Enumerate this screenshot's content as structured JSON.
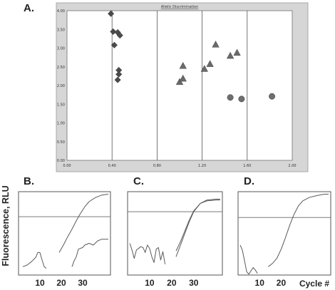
{
  "panels": {
    "a": "A.",
    "b": "B.",
    "c": "C.",
    "d": "D."
  },
  "bottom_ylabel": "Fluorescence, RLU",
  "bottom_xlabel": "Cycle #",
  "colors": {
    "frame_bg": "#d6d6d6",
    "plot_bg": "#ffffff",
    "marker": "#4a4a4a",
    "curve": "#5a5a5a",
    "threshold": "#7a7a7a"
  },
  "chart_data": [
    {
      "type": "scatter",
      "title": "Allelic Discrimination",
      "xlim": [
        0,
        2.0
      ],
      "ylim": [
        0,
        4.0
      ],
      "xticks": [
        "0.00",
        "0.40",
        "0.80",
        "1.20",
        "1.60",
        "2.00"
      ],
      "yticks": [
        "0.00",
        "0.50",
        "1.00",
        "1.50",
        "2.00",
        "2.50",
        "3.00",
        "3.50",
        "4.00"
      ],
      "grid": "vertical",
      "series": [
        {
          "marker": "diamond",
          "points": [
            [
              0.39,
              3.92
            ],
            [
              0.41,
              3.44
            ],
            [
              0.45,
              3.42
            ],
            [
              0.47,
              3.34
            ],
            [
              0.42,
              3.08
            ],
            [
              0.46,
              2.41
            ],
            [
              0.46,
              2.3
            ],
            [
              0.45,
              2.15
            ]
          ]
        },
        {
          "marker": "triangle",
          "points": [
            [
              1.0,
              2.1
            ],
            [
              1.03,
              2.19
            ],
            [
              1.03,
              2.53
            ],
            [
              1.22,
              2.45
            ],
            [
              1.27,
              2.58
            ],
            [
              1.32,
              3.1
            ],
            [
              1.45,
              2.8
            ],
            [
              1.51,
              2.88
            ]
          ]
        },
        {
          "marker": "circle",
          "points": [
            [
              1.45,
              1.68
            ],
            [
              1.55,
              1.64
            ],
            [
              1.82,
              1.71
            ]
          ]
        }
      ]
    },
    {
      "type": "line",
      "panel": "B.",
      "xlim": [
        0,
        43
      ],
      "xticks": [
        10,
        20,
        30
      ],
      "series": [
        {
          "points": [
            [
              2,
              0.1
            ],
            [
              4,
              0.12
            ],
            [
              6,
              0.16
            ],
            [
              8,
              0.21
            ],
            [
              9,
              0.27
            ],
            [
              10,
              0.27
            ],
            [
              11,
              0.18
            ],
            [
              12,
              0.1
            ],
            [
              13,
              0.08
            ]
          ]
        },
        {
          "points": [
            [
              19,
              0.27
            ],
            [
              21,
              0.36
            ],
            [
              23,
              0.46
            ],
            [
              25,
              0.55
            ],
            [
              27,
              0.65
            ],
            [
              29,
              0.74
            ],
            [
              31,
              0.82
            ],
            [
              33,
              0.88
            ],
            [
              36,
              0.93
            ],
            [
              39,
              0.96
            ],
            [
              42,
              0.97
            ]
          ]
        },
        {
          "points": [
            [
              25,
              0.1
            ],
            [
              26,
              0.17
            ],
            [
              27,
              0.22
            ],
            [
              28,
              0.31
            ],
            [
              30,
              0.33
            ],
            [
              31,
              0.36
            ],
            [
              33,
              0.38
            ],
            [
              35,
              0.36
            ],
            [
              37,
              0.41
            ],
            [
              39,
              0.43
            ],
            [
              42,
              0.43
            ]
          ]
        }
      ],
      "threshold": 0.7
    },
    {
      "type": "line",
      "panel": "C.",
      "xlim": [
        0,
        43
      ],
      "xticks": [
        10,
        20,
        30
      ],
      "series": [
        {
          "points": [
            [
              1,
              0.38
            ],
            [
              2,
              0.3
            ],
            [
              3,
              0.2
            ],
            [
              4,
              0.3
            ],
            [
              6,
              0.34
            ],
            [
              7,
              0.33
            ],
            [
              8,
              0.27
            ],
            [
              9,
              0.36
            ],
            [
              10,
              0.32
            ],
            [
              11,
              0.22
            ],
            [
              12,
              0.15
            ],
            [
              13,
              0.31
            ],
            [
              14,
              0.33
            ],
            [
              15,
              0.18
            ],
            [
              16,
              0.28
            ],
            [
              17,
              0.13
            ]
          ]
        },
        {
          "points": [
            [
              22,
              0.29
            ],
            [
              24,
              0.4
            ],
            [
              26,
              0.53
            ],
            [
              28,
              0.66
            ],
            [
              30,
              0.77
            ],
            [
              33,
              0.86
            ],
            [
              36,
              0.9
            ],
            [
              40,
              0.91
            ],
            [
              42,
              0.91
            ]
          ]
        },
        {
          "points": [
            [
              22,
              0.22
            ],
            [
              24,
              0.36
            ],
            [
              26,
              0.5
            ],
            [
              28,
              0.64
            ],
            [
              30,
              0.76
            ],
            [
              33,
              0.86
            ],
            [
              36,
              0.89
            ],
            [
              40,
              0.9
            ],
            [
              42,
              0.9
            ]
          ]
        }
      ],
      "threshold": 0.76
    },
    {
      "type": "line",
      "panel": "D.",
      "xlim": [
        0,
        43
      ],
      "xticks": [
        10,
        20
      ],
      "series": [
        {
          "points": [
            [
              1,
              0.36
            ],
            [
              2,
              0.3
            ],
            [
              3,
              0.17
            ],
            [
              4,
              0.04
            ],
            [
              5,
              0.01
            ],
            [
              6,
              0.05
            ],
            [
              7,
              0.09
            ],
            [
              8,
              0.06
            ],
            [
              9,
              0.02
            ]
          ]
        },
        {
          "points": [
            [
              14,
              0.1
            ],
            [
              16,
              0.14
            ],
            [
              18,
              0.2
            ],
            [
              20,
              0.31
            ],
            [
              22,
              0.45
            ],
            [
              24,
              0.6
            ],
            [
              26,
              0.73
            ],
            [
              28,
              0.83
            ],
            [
              30,
              0.89
            ],
            [
              33,
              0.93
            ],
            [
              36,
              0.95
            ],
            [
              40,
              0.97
            ],
            [
              42,
              0.97
            ]
          ]
        }
      ],
      "threshold": 0.69
    }
  ]
}
